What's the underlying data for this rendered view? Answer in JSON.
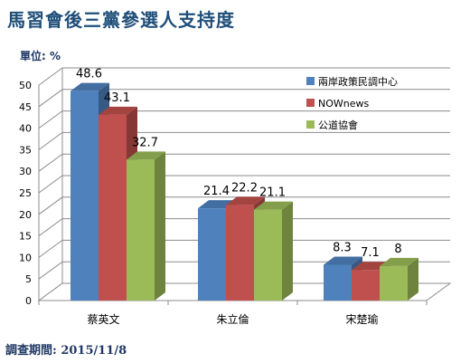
{
  "header": {
    "title": "馬習會後三黨參選人支持度",
    "unit_label": "單位: %",
    "footer": "調查期間: 2015/11/8"
  },
  "chart_data": {
    "type": "bar",
    "title": "馬習會後三黨參選人支持度",
    "ylabel": "單位: %",
    "xlabel": "",
    "ylim": [
      0,
      50
    ],
    "yticks": [
      0,
      5,
      10,
      15,
      20,
      25,
      30,
      35,
      40,
      45,
      50
    ],
    "categories": [
      "蔡英文",
      "朱立倫",
      "宋楚瑜"
    ],
    "grid": true,
    "legend_position": "top-right",
    "series": [
      {
        "name": "兩岸政策民調中心",
        "values": [
          48.6,
          21.4,
          8.3
        ],
        "color": "#4f81bd"
      },
      {
        "name": "NOWnews",
        "values": [
          43.1,
          22.2,
          7.1
        ],
        "color": "#c0504d"
      },
      {
        "name": "公道協會",
        "values": [
          32.7,
          21.1,
          8
        ],
        "color": "#9bbb59"
      }
    ]
  }
}
